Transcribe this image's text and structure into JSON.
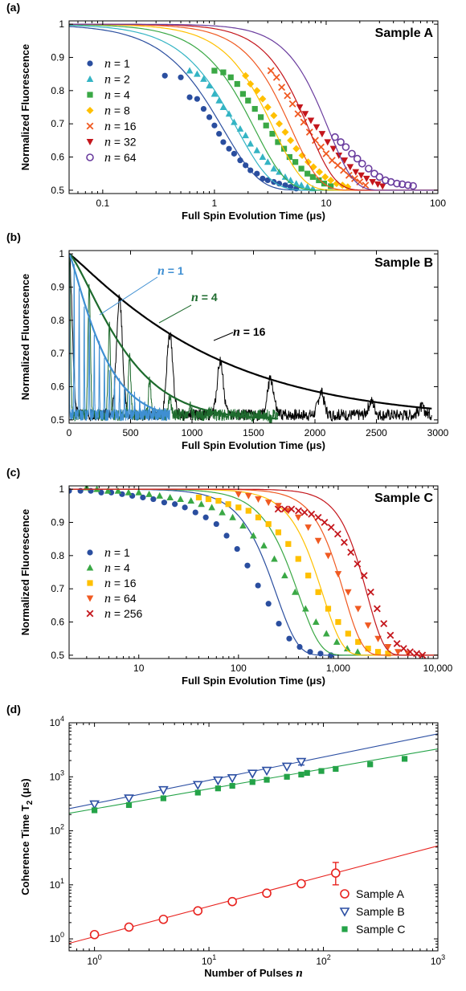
{
  "chart_data": [
    {
      "panel": "(a)",
      "type": "scatter",
      "title": "Sample A",
      "xlabel": "Full Spin Evolution Time (μs)",
      "ylabel": "Normalized Fluorescence",
      "xscale": "log",
      "xlim": [
        0.05,
        100
      ],
      "ylim": [
        0.49,
        1.01
      ],
      "xticks": [
        0.1,
        1,
        10,
        100
      ],
      "xtick_labels": [
        "0.1",
        "1",
        "10",
        "100"
      ],
      "yticks": [
        0.5,
        0.6,
        0.7,
        0.8,
        0.9,
        1
      ],
      "ytick_labels": [
        "0.5",
        "0.6",
        "0.7",
        "0.8",
        "0.9",
        "1"
      ],
      "grid": false,
      "legend_position": "left",
      "series": [
        {
          "name": "n = 1",
          "color": "#2a4e9f",
          "marker": "circle",
          "fit": {
            "t2": 1.2,
            "p": 1.35
          },
          "x": [
            0.36,
            0.5,
            0.6,
            0.7,
            0.8,
            0.9,
            1.0,
            1.1,
            1.2,
            1.35,
            1.5,
            1.7,
            1.9,
            2.1,
            2.4,
            2.7,
            3.0,
            3.4,
            3.8,
            4.3,
            4.8,
            5.4
          ],
          "y": [
            0.845,
            0.84,
            0.78,
            0.775,
            0.745,
            0.72,
            0.695,
            0.67,
            0.645,
            0.625,
            0.61,
            0.59,
            0.575,
            0.56,
            0.55,
            0.535,
            0.53,
            0.525,
            0.52,
            0.515,
            0.51,
            0.505
          ]
        },
        {
          "name": "n = 2",
          "color": "#34b4c4",
          "marker": "triangle-up",
          "fit": {
            "t2": 1.6,
            "p": 1.45
          },
          "x": [
            0.6,
            0.7,
            0.8,
            0.9,
            1.0,
            1.1,
            1.2,
            1.35,
            1.5,
            1.7,
            1.9,
            2.1,
            2.4,
            2.7,
            3.0,
            3.4,
            3.8,
            4.3,
            4.8,
            5.4,
            6.0,
            6.8,
            7.6
          ],
          "y": [
            0.86,
            0.85,
            0.835,
            0.815,
            0.79,
            0.77,
            0.75,
            0.73,
            0.705,
            0.685,
            0.665,
            0.64,
            0.62,
            0.6,
            0.585,
            0.565,
            0.555,
            0.54,
            0.53,
            0.52,
            0.515,
            0.51,
            0.505
          ]
        },
        {
          "name": "n = 4",
          "color": "#3aa845",
          "marker": "square",
          "fit": {
            "t2": 2.3,
            "p": 1.55
          },
          "x": [
            1.0,
            1.2,
            1.4,
            1.6,
            1.8,
            2.0,
            2.3,
            2.6,
            2.9,
            3.3,
            3.7,
            4.2,
            4.7,
            5.3,
            6.0,
            6.8,
            7.6,
            8.6,
            9.6,
            11
          ],
          "y": [
            0.86,
            0.855,
            0.84,
            0.82,
            0.79,
            0.77,
            0.745,
            0.72,
            0.695,
            0.67,
            0.645,
            0.625,
            0.6,
            0.585,
            0.565,
            0.55,
            0.54,
            0.53,
            0.52,
            0.512
          ]
        },
        {
          "name": "n = 8",
          "color": "#ffc000",
          "marker": "diamond",
          "fit": {
            "t2": 3.4,
            "p": 1.65
          },
          "x": [
            1.9,
            2.1,
            2.4,
            2.7,
            3.0,
            3.4,
            3.8,
            4.3,
            4.8,
            5.4,
            6.1,
            6.9,
            7.7,
            8.7,
            9.8,
            11,
            12.4,
            14,
            15.6
          ],
          "y": [
            0.845,
            0.82,
            0.8,
            0.775,
            0.75,
            0.725,
            0.7,
            0.675,
            0.65,
            0.625,
            0.605,
            0.585,
            0.57,
            0.555,
            0.54,
            0.53,
            0.52,
            0.515,
            0.51
          ]
        },
        {
          "name": "n = 16",
          "color": "#f05a22",
          "marker": "x",
          "fit": {
            "t2": 4.9,
            "p": 1.75
          },
          "x": [
            3.2,
            3.6,
            4.0,
            4.5,
            5.0,
            5.6,
            6.3,
            7.1,
            8.0,
            9.0,
            10,
            11.3,
            12.7,
            14.3,
            16,
            18,
            20,
            22.5
          ],
          "y": [
            0.86,
            0.84,
            0.81,
            0.785,
            0.76,
            0.73,
            0.705,
            0.675,
            0.65,
            0.63,
            0.61,
            0.59,
            0.575,
            0.56,
            0.545,
            0.535,
            0.525,
            0.515
          ]
        },
        {
          "name": "n = 32",
          "color": "#c4161c",
          "marker": "triangle-down",
          "fit": {
            "t2": 7.0,
            "p": 1.85
          },
          "x": [
            5.8,
            6.5,
            7.3,
            8.2,
            9.2,
            10.3,
            11.6,
            13,
            14.6,
            16.4,
            18.4,
            20.6,
            23,
            26,
            29,
            32
          ],
          "y": [
            0.75,
            0.73,
            0.71,
            0.69,
            0.67,
            0.645,
            0.625,
            0.605,
            0.59,
            0.57,
            0.555,
            0.545,
            0.535,
            0.525,
            0.518,
            0.512
          ]
        },
        {
          "name": "n = 64",
          "color": "#6a3c9e",
          "marker": "circle-open",
          "fit": {
            "t2": 10.5,
            "p": 1.95
          },
          "x": [
            12,
            13.5,
            15,
            17,
            19,
            21,
            24,
            27,
            30,
            34,
            38,
            43,
            48,
            54,
            60
          ],
          "y": [
            0.66,
            0.645,
            0.63,
            0.61,
            0.595,
            0.58,
            0.565,
            0.55,
            0.54,
            0.53,
            0.525,
            0.52,
            0.518,
            0.515,
            0.513
          ]
        }
      ]
    },
    {
      "panel": "(b)",
      "type": "line",
      "title": "Sample B",
      "xlabel": "Full Spin Evolution Time (μs)",
      "ylabel": "Normalized Fluorescence",
      "xlim": [
        0,
        3000
      ],
      "ylim": [
        0.49,
        1.01
      ],
      "xticks": [
        0,
        500,
        1000,
        1500,
        2000,
        2500,
        3000
      ],
      "xtick_labels": [
        "0",
        "500",
        "1000",
        "1500",
        "2000",
        "2500",
        "3000"
      ],
      "yticks": [
        0.5,
        0.6,
        0.7,
        0.8,
        0.9,
        1
      ],
      "ytick_labels": [
        "0.5",
        "0.6",
        "0.7",
        "0.8",
        "0.9",
        "1"
      ],
      "grid": false,
      "series": [
        {
          "name": "n = 1",
          "label_text": "n = 1",
          "color": "#3f8fd2",
          "revival_period": 41,
          "revival_count": 20,
          "envelope_t2": 300,
          "envelope_p": 1.2,
          "x_max": 820
        },
        {
          "name": "n = 4",
          "label_text": "n = 4",
          "color": "#1e6b2e",
          "revival_period": 164,
          "revival_count": 10,
          "envelope_t2": 500,
          "envelope_p": 1.3,
          "x_max": 1700
        },
        {
          "name": "n = 16",
          "label_text": "n = 16",
          "color": "#000000",
          "revival_period": 410,
          "revival_count": 7,
          "envelope_t2": 1200,
          "envelope_p": 1.1,
          "x_max": 2950
        }
      ]
    },
    {
      "panel": "(c)",
      "type": "scatter",
      "title": "Sample C",
      "xlabel": "Full Spin Evolution Time (μs)",
      "ylabel": "Normalized Fluorescence",
      "xscale": "log",
      "xlim": [
        2,
        10000
      ],
      "ylim": [
        0.49,
        1.01
      ],
      "xticks": [
        10,
        100,
        1000,
        10000
      ],
      "xtick_labels": [
        "10",
        "100",
        "1,000",
        "10,000"
      ],
      "yticks": [
        0.5,
        0.6,
        0.7,
        0.8,
        0.9,
        1
      ],
      "ytick_labels": [
        "0.5",
        "0.6",
        "0.7",
        "0.8",
        "0.9",
        "1"
      ],
      "grid": false,
      "legend_position": "left",
      "series": [
        {
          "name": "n = 1",
          "color": "#2a4e9f",
          "marker": "circle",
          "fit": {
            "t2": 240,
            "p": 2.0
          },
          "x": [
            2,
            2.6,
            3.3,
            4.2,
            5.3,
            6.8,
            8.6,
            11,
            14,
            18,
            23,
            29,
            37,
            47,
            60,
            76,
            97,
            123,
            157,
            200,
            254,
            323,
            411,
            523,
            665,
            846
          ],
          "y": [
            0.995,
            0.995,
            0.995,
            0.99,
            0.99,
            0.985,
            0.98,
            0.975,
            0.97,
            0.96,
            0.955,
            0.945,
            0.93,
            0.915,
            0.895,
            0.86,
            0.82,
            0.77,
            0.71,
            0.655,
            0.595,
            0.55,
            0.525,
            0.51,
            0.505,
            0.5
          ]
        },
        {
          "name": "n = 4",
          "color": "#3aa845",
          "marker": "triangle-up",
          "fit": {
            "t2": 400,
            "p": 2.0
          },
          "x": [
            3,
            3.8,
            4.9,
            6.2,
            7.9,
            10,
            12.7,
            16.2,
            20.6,
            26.2,
            33.4,
            42.4,
            54,
            68.7,
            87.4,
            111,
            141,
            180,
            229,
            291,
            370,
            471,
            599,
            762,
            969,
            1233,
            1568
          ],
          "y": [
            1.005,
            1.0,
            0.995,
            0.995,
            0.99,
            0.99,
            0.985,
            0.98,
            0.975,
            0.97,
            0.965,
            0.955,
            0.945,
            0.93,
            0.915,
            0.89,
            0.86,
            0.83,
            0.79,
            0.74,
            0.69,
            0.64,
            0.6,
            0.565,
            0.54,
            0.52,
            0.51
          ]
        },
        {
          "name": "n = 16",
          "color": "#ffc000",
          "marker": "square",
          "fit": {
            "t2": 700,
            "p": 2.2
          },
          "x": [
            40,
            50,
            63,
            79,
            100,
            126,
            158,
            200,
            251,
            316,
            398,
            501,
            631,
            794,
            1000,
            1259,
            1585,
            1995,
            2512,
            3162
          ],
          "y": [
            0.975,
            0.97,
            0.965,
            0.955,
            0.945,
            0.935,
            0.915,
            0.895,
            0.87,
            0.835,
            0.79,
            0.74,
            0.69,
            0.64,
            0.6,
            0.565,
            0.54,
            0.52,
            0.51,
            0.505
          ]
        },
        {
          "name": "n = 64",
          "color": "#f05a22",
          "marker": "triangle-down",
          "fit": {
            "t2": 1150,
            "p": 2.4
          },
          "x": [
            100,
            126,
            158,
            200,
            251,
            316,
            398,
            501,
            631,
            794,
            1000,
            1259,
            1585,
            1995,
            2512,
            3162,
            3981,
            5012
          ],
          "y": [
            0.985,
            0.98,
            0.97,
            0.96,
            0.95,
            0.935,
            0.915,
            0.885,
            0.845,
            0.8,
            0.745,
            0.69,
            0.64,
            0.59,
            0.55,
            0.525,
            0.51,
            0.505
          ]
        },
        {
          "name": "n = 256",
          "color": "#c4161c",
          "marker": "x",
          "fit": {
            "t2": 1950,
            "p": 2.6
          },
          "x": [
            250,
            290,
            340,
            400,
            460,
            540,
            630,
            730,
            850,
            990,
            1150,
            1340,
            1560,
            1820,
            2120,
            2460,
            2870,
            3340,
            3890,
            4530,
            5270,
            6130,
            7000
          ],
          "y": [
            0.94,
            0.94,
            0.94,
            0.935,
            0.93,
            0.925,
            0.915,
            0.9,
            0.885,
            0.865,
            0.84,
            0.81,
            0.775,
            0.74,
            0.69,
            0.64,
            0.595,
            0.56,
            0.535,
            0.52,
            0.51,
            0.505,
            0.5
          ]
        }
      ]
    },
    {
      "panel": "(d)",
      "type": "scatter",
      "title": "",
      "xlabel": "Number of Pulses n",
      "ylabel": "Coherence Time T2 (μs)",
      "xscale": "log",
      "yscale": "log",
      "xlim": [
        0.6,
        1000
      ],
      "ylim": [
        0.6,
        10000
      ],
      "xticks": [
        1,
        10,
        100,
        1000
      ],
      "xtick_labels": [
        "10^0",
        "10^1",
        "10^2",
        "10^3"
      ],
      "yticks": [
        1,
        10,
        100,
        1000,
        10000
      ],
      "ytick_labels": [
        "10^0",
        "10^1",
        "10^2",
        "10^3",
        "10^4"
      ],
      "grid": false,
      "legend_position": "bottom-right",
      "series": [
        {
          "name": "Sample A",
          "color": "#e8231f",
          "marker": "circle-open",
          "x": [
            1,
            2,
            4,
            8,
            16,
            32,
            64,
            128
          ],
          "y": [
            1.2,
            1.65,
            2.3,
            3.3,
            4.9,
            7.0,
            10.5,
            16.5
          ],
          "errors": [
            {
              "x": 128,
              "low": 10,
              "high": 26
            }
          ],
          "fit": {
            "a": 1.1,
            "b": 0.56
          }
        },
        {
          "name": "Sample B",
          "color": "#2c4fa3",
          "marker": "triangle-down-open",
          "x": [
            1,
            2,
            4,
            8,
            12,
            16,
            24,
            32,
            48,
            64
          ],
          "y": [
            310,
            400,
            570,
            710,
            860,
            950,
            1150,
            1300,
            1550,
            1900
          ],
          "errors": [
            {
              "x": 64,
              "low": 1650,
              "high": 2150
            }
          ],
          "fit": {
            "a": 320,
            "b": 0.43
          }
        },
        {
          "name": "Sample C",
          "color": "#24a348",
          "marker": "square",
          "x": [
            1,
            2,
            4,
            8,
            12,
            16,
            24,
            32,
            48,
            64,
            72,
            96,
            128,
            256,
            512
          ],
          "y": [
            240,
            300,
            400,
            510,
            610,
            680,
            800,
            880,
            1000,
            1100,
            1180,
            1280,
            1400,
            1700,
            2150
          ],
          "fit": {
            "a": 255,
            "b": 0.37
          }
        }
      ]
    }
  ]
}
